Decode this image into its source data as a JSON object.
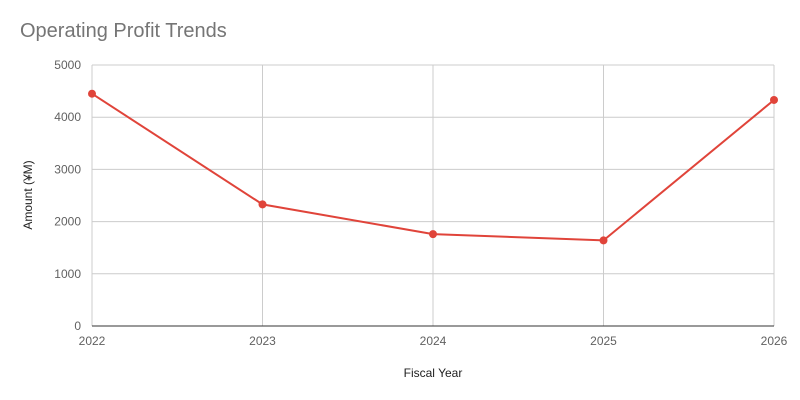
{
  "chart_data": {
    "type": "line",
    "title": "Operating Profit Trends",
    "xlabel": "Fiscal Year",
    "ylabel": "Amount (¥M)",
    "categories": [
      "2022",
      "2023",
      "2024",
      "2025",
      "2026"
    ],
    "series": [
      {
        "values": [
          4450,
          2330,
          1760,
          1640,
          4330
        ]
      }
    ],
    "ylim": [
      0,
      5000
    ],
    "yticks": [
      0,
      1000,
      2000,
      3000,
      4000,
      5000
    ],
    "grid": true,
    "legend": "none",
    "colors": {
      "line": "#e0443a",
      "grid": "#cccccc",
      "axis": "#333333"
    }
  }
}
